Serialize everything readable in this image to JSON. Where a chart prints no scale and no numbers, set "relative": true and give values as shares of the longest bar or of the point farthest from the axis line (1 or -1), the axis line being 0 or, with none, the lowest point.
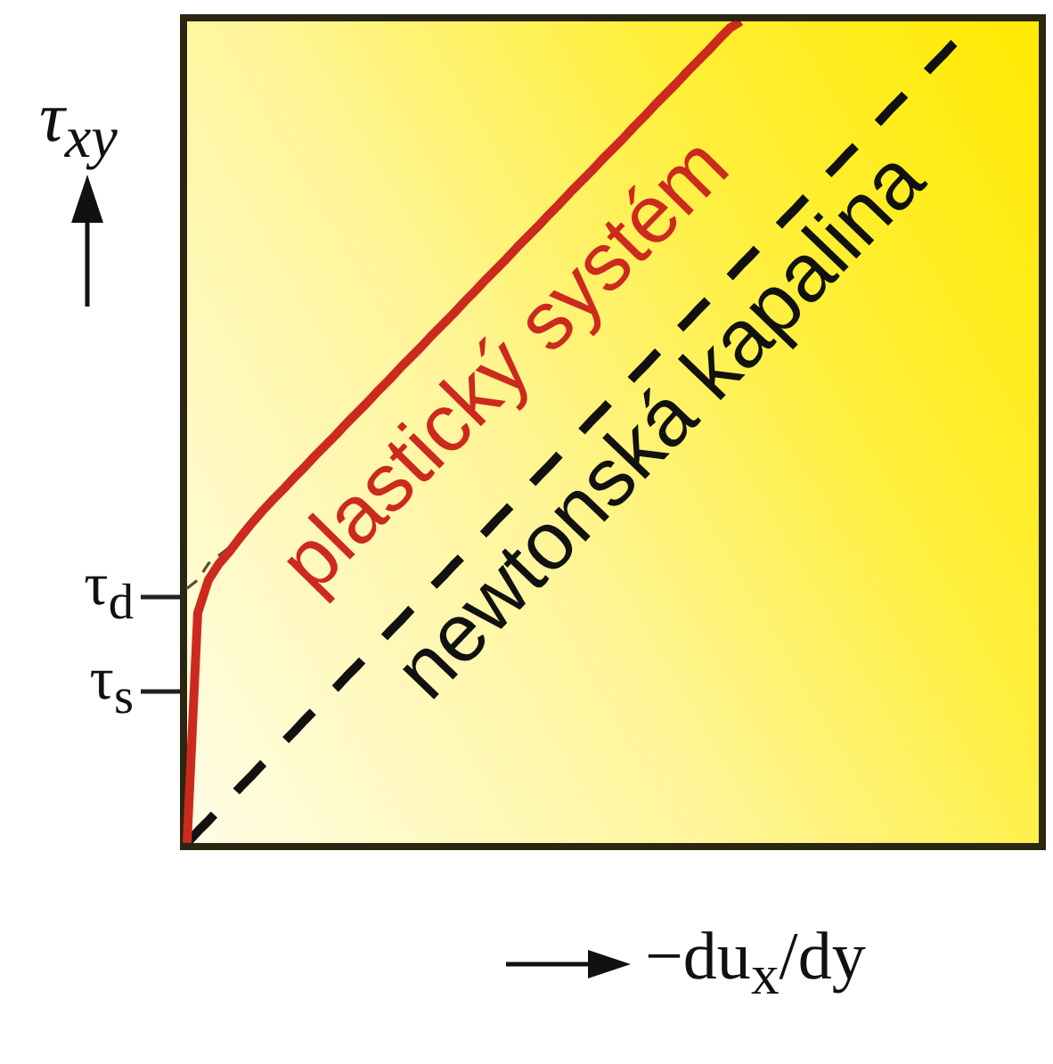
{
  "chart_data": {
    "type": "line",
    "relative": true,
    "ylabel": "τ$_{xy}$",
    "xlabel": "−du$_{x}$/dy",
    "marker": "none",
    "categories": [
      null,
      null,
      null,
      null,
      null,
      null,
      null,
      null,
      null,
      null,
      null,
      null,
      null,
      null,
      null,
      null,
      null,
      null,
      null,
      null,
      null,
      null,
      null,
      null,
      null,
      null,
      null,
      null,
      null,
      null,
      null,
      null,
      null,
      null,
      null,
      null,
      null,
      null,
      null,
      null,
      null,
      null,
      null,
      null,
      null,
      null,
      null,
      null,
      null,
      null,
      null,
      null,
      null,
      null,
      null,
      null,
      null,
      null,
      null,
      null,
      null,
      null,
      null,
      null,
      null,
      null,
      null,
      null,
      null,
      null,
      null,
      null,
      null,
      null,
      null,
      null,
      null,
      null,
      null,
      null,
      null
    ],
    "series": [
      {
        "name": "plastický systém",
        "color": "#cc2a1e",
        "line_style": "solid",
        "values": [
          0,
          0.28,
          0.32,
          0.34,
          0.355,
          0.372,
          0.388,
          0.403,
          0.417,
          0.43,
          0.444,
          0.457,
          0.471,
          0.484,
          0.497,
          0.511,
          0.524,
          0.537,
          0.551,
          0.564,
          0.578,
          0.591,
          0.604,
          0.618,
          0.631,
          0.644,
          0.658,
          0.671,
          0.685,
          0.698,
          0.711,
          0.725,
          0.738,
          0.751,
          0.765,
          0.778,
          0.792,
          0.805,
          0.818,
          0.832,
          0.845,
          0.858,
          0.872,
          0.885,
          0.899,
          0.912,
          0.925,
          0.939,
          0.952,
          0.965,
          0.979,
          0.992,
          1,
          null,
          null,
          null,
          null,
          null,
          null,
          null,
          null,
          null,
          null,
          null,
          null,
          null,
          null,
          null,
          null,
          null,
          null,
          null,
          null,
          null,
          null,
          null,
          null,
          null,
          null,
          null,
          null
        ]
      },
      {
        "name": "newtonská kapalina",
        "color": "#111111",
        "line_style": "dashed",
        "values": [
          0,
          0.014,
          0.027,
          0.041,
          0.054,
          0.068,
          0.081,
          0.095,
          0.108,
          0.122,
          0.135,
          0.149,
          0.162,
          0.176,
          0.189,
          0.203,
          0.216,
          0.23,
          0.243,
          0.257,
          0.27,
          0.284,
          0.297,
          0.311,
          0.324,
          0.338,
          0.351,
          0.365,
          0.378,
          0.392,
          0.405,
          0.419,
          0.432,
          0.446,
          0.459,
          0.473,
          0.486,
          0.5,
          0.514,
          0.527,
          0.541,
          0.554,
          0.568,
          0.581,
          0.595,
          0.608,
          0.622,
          0.635,
          0.649,
          0.662,
          0.676,
          0.689,
          0.703,
          0.716,
          0.73,
          0.743,
          0.757,
          0.77,
          0.784,
          0.797,
          0.811,
          0.824,
          0.838,
          0.851,
          0.865,
          0.878,
          0.892,
          0.905,
          0.919,
          0.932,
          0.946,
          0.959,
          0.973,
          0.986,
          1,
          null,
          null,
          null,
          null,
          null,
          null
        ]
      },
      {
        "color": "#5a5030",
        "line_style": "dashed",
        "values": [
          0.31,
          0.32,
          0.34,
          0.35,
          0.36,
          null,
          null,
          null,
          null,
          null,
          null,
          null,
          null,
          null,
          null,
          null,
          null,
          null,
          null,
          null,
          null,
          null,
          null,
          null,
          null,
          null,
          null,
          null,
          null,
          null,
          null,
          null,
          null,
          null,
          null,
          null,
          null,
          null,
          null,
          null,
          null,
          null,
          null,
          null,
          null,
          null,
          null,
          null,
          null,
          null,
          null,
          null,
          null,
          null,
          null,
          null,
          null,
          null,
          null,
          null,
          null,
          null,
          null,
          null,
          null,
          null,
          null,
          null,
          null,
          null,
          null,
          null,
          null,
          null,
          null,
          null,
          null,
          null,
          null,
          null,
          null
        ]
      }
    ],
    "annotations": [
      "τ$_{d}$",
      "τ$_{s}$"
    ]
  }
}
